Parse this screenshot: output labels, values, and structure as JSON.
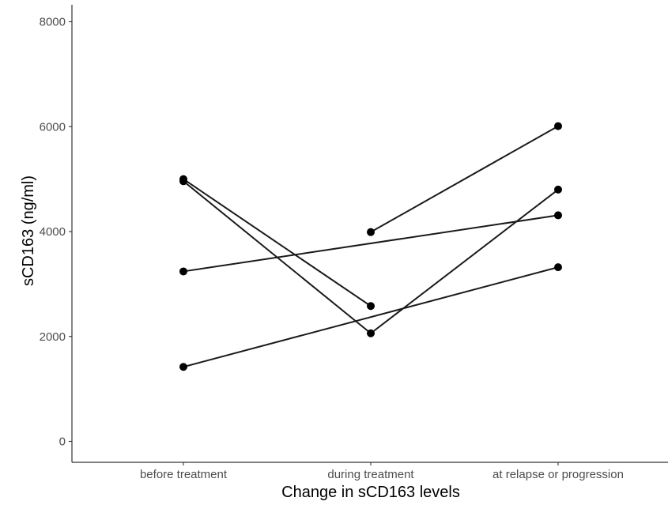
{
  "chart_data": {
    "type": "line",
    "title": "",
    "xlabel": "Change in sCD163 levels",
    "ylabel": "sCD163 (ng/ml)",
    "categories": [
      "before treatment",
      "during treatment",
      "at relapse or progression"
    ],
    "ylim": [
      0,
      8000
    ],
    "yticks": [
      0,
      2000,
      4000,
      6000,
      8000
    ],
    "grid": false,
    "series": [
      {
        "values": [
          5000,
          2580,
          null
        ]
      },
      {
        "values": [
          4960,
          2060,
          4800
        ]
      },
      {
        "values": [
          null,
          3990,
          6010
        ]
      },
      {
        "values": [
          3240,
          null,
          4310
        ]
      },
      {
        "values": [
          1420,
          null,
          3320
        ]
      }
    ],
    "colors": {
      "line": "#1a1a1a",
      "point": "#000000",
      "axis": "#333333",
      "tick_label": "#4d4d4d"
    }
  }
}
